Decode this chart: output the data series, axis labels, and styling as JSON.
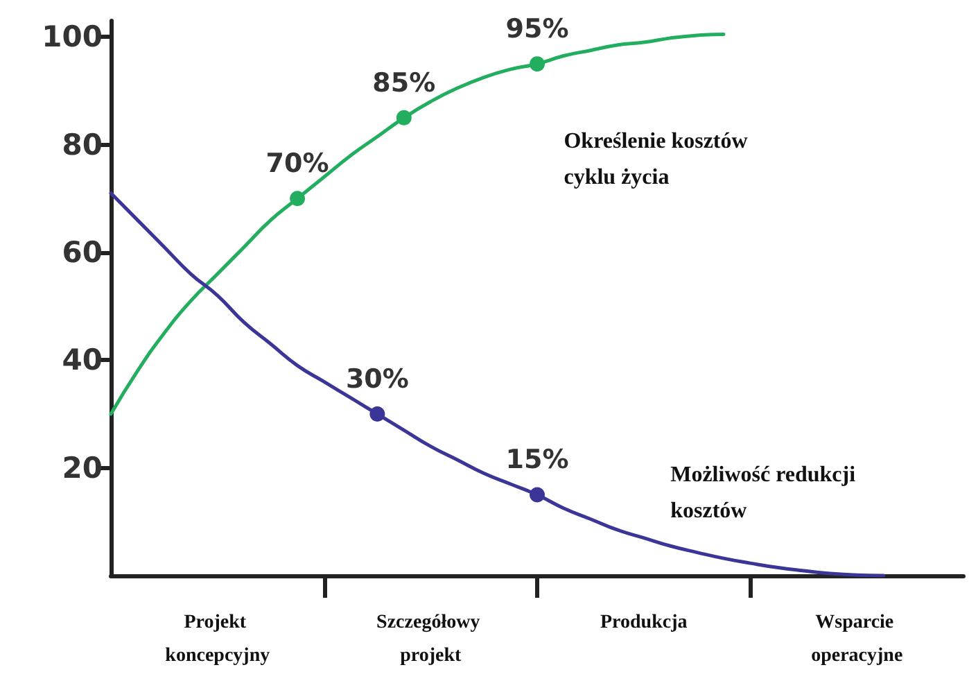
{
  "chart_data": {
    "type": "line",
    "categories": [
      null,
      null,
      null,
      null,
      "Projekt koncepcyjny",
      null,
      null,
      null,
      null,
      null,
      null,
      null,
      "Szczegółowy projekt",
      null,
      null,
      null,
      null,
      null,
      null,
      null,
      "Produkcja",
      null,
      null,
      null,
      null,
      null,
      null,
      null,
      "Wsparcie operacyjne",
      null,
      null,
      null,
      null
    ],
    "ylim": [
      0,
      103
    ],
    "yticks": [
      20,
      40,
      60,
      80,
      100
    ],
    "grid": false,
    "legend": false,
    "line_style": "solid",
    "series": [
      {
        "name": "Określenie kosztów cyklu życia",
        "color": "#22ae5e",
        "values": [
          30,
          38,
          45,
          51,
          56,
          61,
          66,
          70,
          74,
          78,
          81.5,
          85,
          88,
          90.5,
          92.5,
          94,
          95,
          96.5,
          97.5,
          98.5,
          99,
          99.8,
          100.3,
          100.5,
          null,
          null,
          null,
          null,
          null,
          null,
          null,
          null,
          null
        ],
        "value_labels": [
          null,
          null,
          null,
          null,
          null,
          null,
          null,
          "70%",
          null,
          null,
          null,
          "85%",
          null,
          null,
          null,
          null,
          "95%",
          null,
          null,
          null,
          null,
          null,
          null,
          null,
          null,
          null,
          null,
          null,
          null,
          null,
          null,
          null,
          null
        ]
      },
      {
        "name": "Możliwość redukcji kosztów",
        "color": "#3a3596",
        "values": [
          71,
          66,
          61,
          56,
          52,
          47,
          43,
          39,
          36,
          33,
          30,
          27,
          24,
          21.5,
          19,
          17,
          15,
          12.5,
          10.5,
          8.5,
          7,
          5.5,
          4.3,
          3.2,
          2.3,
          1.5,
          0.9,
          0.4,
          0.1,
          0,
          null,
          null,
          null
        ],
        "value_labels": [
          null,
          null,
          null,
          null,
          null,
          null,
          null,
          null,
          null,
          null,
          "30%",
          null,
          null,
          null,
          null,
          null,
          "15%",
          null,
          null,
          null,
          null,
          null,
          null,
          null,
          null,
          null,
          null,
          null,
          null,
          null,
          null,
          null,
          null
        ]
      }
    ]
  }
}
